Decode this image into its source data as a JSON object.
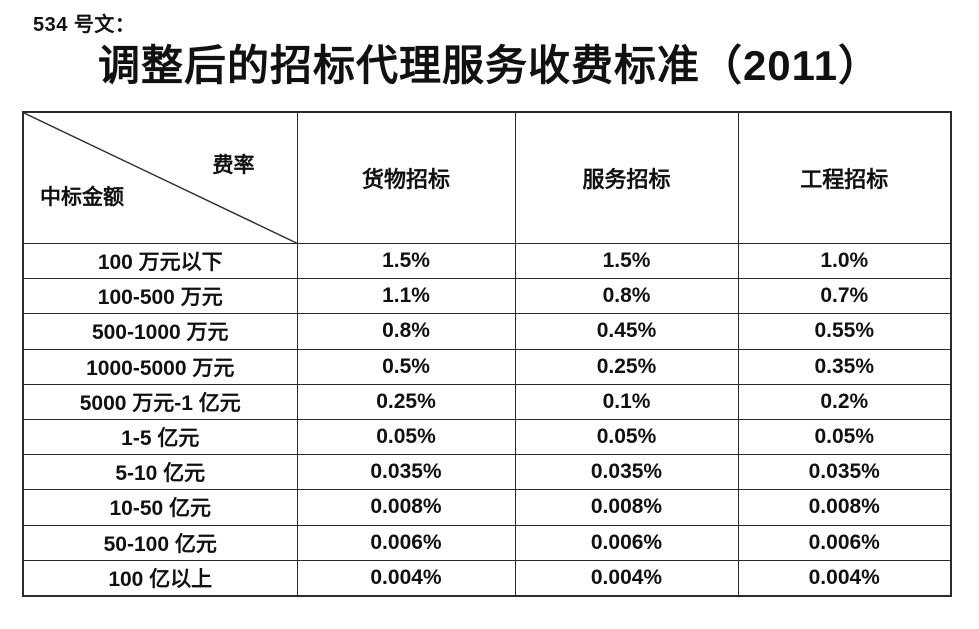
{
  "doc_number": "534 号文：",
  "title": "调整后的招标代理服务收费标准（2011）",
  "table": {
    "corner": {
      "top_right": "费率",
      "bottom_left": "中标金额"
    },
    "columns": [
      "货物招标",
      "服务招标",
      "工程招标"
    ],
    "rows": [
      {
        "label": "100 万元以下",
        "values": [
          "1.5%",
          "1.5%",
          "1.0%"
        ]
      },
      {
        "label": "100-500 万元",
        "values": [
          "1.1%",
          "0.8%",
          "0.7%"
        ]
      },
      {
        "label": "500-1000 万元",
        "values": [
          "0.8%",
          "0.45%",
          "0.55%"
        ]
      },
      {
        "label": "1000-5000 万元",
        "values": [
          "0.5%",
          "0.25%",
          "0.35%"
        ]
      },
      {
        "label": "5000 万元-1 亿元",
        "values": [
          "0.25%",
          "0.1%",
          "0.2%"
        ]
      },
      {
        "label": "1-5 亿元",
        "values": [
          "0.05%",
          "0.05%",
          "0.05%"
        ]
      },
      {
        "label": "5-10 亿元",
        "values": [
          "0.035%",
          "0.035%",
          "0.035%"
        ]
      },
      {
        "label": "10-50 亿元",
        "values": [
          "0.008%",
          "0.008%",
          "0.008%"
        ]
      },
      {
        "label": "50-100 亿元",
        "values": [
          "0.006%",
          "0.006%",
          "0.006%"
        ]
      },
      {
        "label": "100 亿以上",
        "values": [
          "0.004%",
          "0.004%",
          "0.004%"
        ]
      }
    ]
  },
  "colors": {
    "text": "#111111",
    "border": "#2b2b2b",
    "background": "#ffffff"
  }
}
